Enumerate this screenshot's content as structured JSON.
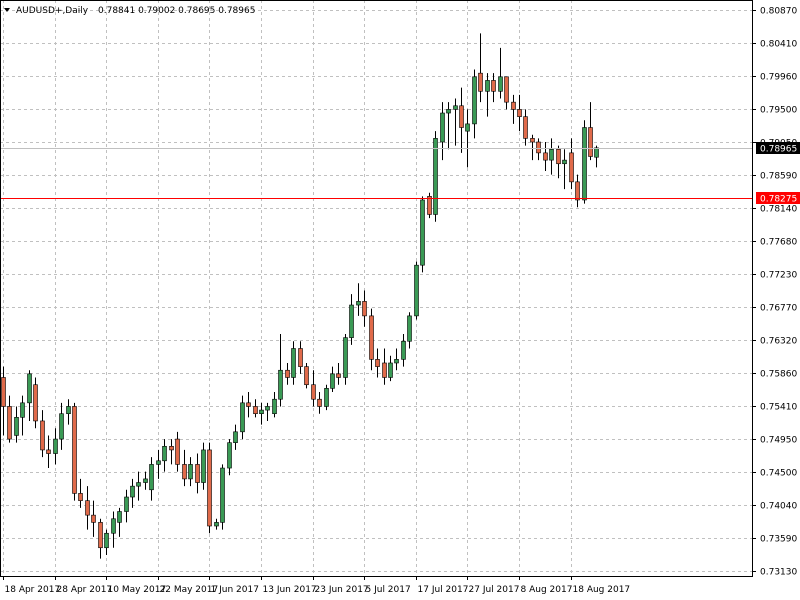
{
  "colors": {
    "background": "#ffffff",
    "grid": "#c0c0c0",
    "bull": "#3a9a55",
    "bear": "#e06a4a",
    "wick": "#000000",
    "current_line": "#c0c0c0",
    "current_tag_bg": "#000000",
    "current_tag_fg": "#ffffff",
    "ref_line": "#ff0000",
    "ref_tag_bg": "#ff0000",
    "ref_tag_fg": "#ffffff"
  },
  "chart_data": {
    "type": "candlestick",
    "symbol": "AUDUSD+,Daily",
    "info_values": "0.78841 0.79002 0.78695 0.78965",
    "ylim": [
      0.7306,
      0.8101
    ],
    "y_ticks": [
      "0.80870",
      "0.80410",
      "0.79960",
      "0.79500",
      "0.79050",
      "0.78590",
      "0.78140",
      "0.77680",
      "0.77230",
      "0.76770",
      "0.76320",
      "0.75860",
      "0.75410",
      "0.74950",
      "0.74500",
      "0.74040",
      "0.73590",
      "0.73130"
    ],
    "x_labels": [
      {
        "label": "18 Apr 2017",
        "index": 0
      },
      {
        "label": "28 Apr 2017",
        "index": 8
      },
      {
        "label": "10 May 2017",
        "index": 16
      },
      {
        "label": "22 May 2017",
        "index": 24
      },
      {
        "label": "1 Jun 2017",
        "index": 32
      },
      {
        "label": "13 Jun 2017",
        "index": 40
      },
      {
        "label": "23 Jun 2017",
        "index": 48
      },
      {
        "label": "5 Jul 2017",
        "index": 56
      },
      {
        "label": "17 Jul 2017",
        "index": 64
      },
      {
        "label": "27 Jul 2017",
        "index": 72
      },
      {
        "label": "8 Aug 2017",
        "index": 80
      },
      {
        "label": "18 Aug 2017",
        "index": 88
      }
    ],
    "current_price": "0.78965",
    "current_value": 0.78965,
    "ref_price": "0.78275",
    "ref_value": 0.78275,
    "candles": [
      {
        "o": 0.758,
        "h": 0.7595,
        "l": 0.75,
        "c": 0.754
      },
      {
        "o": 0.754,
        "h": 0.7555,
        "l": 0.749,
        "c": 0.7495
      },
      {
        "o": 0.75,
        "h": 0.754,
        "l": 0.749,
        "c": 0.7525
      },
      {
        "o": 0.7525,
        "h": 0.7555,
        "l": 0.75,
        "c": 0.7545
      },
      {
        "o": 0.7545,
        "h": 0.759,
        "l": 0.752,
        "c": 0.7585
      },
      {
        "o": 0.757,
        "h": 0.758,
        "l": 0.751,
        "c": 0.752
      },
      {
        "o": 0.752,
        "h": 0.7535,
        "l": 0.747,
        "c": 0.748
      },
      {
        "o": 0.748,
        "h": 0.75,
        "l": 0.7455,
        "c": 0.7475
      },
      {
        "o": 0.7475,
        "h": 0.751,
        "l": 0.746,
        "c": 0.7495
      },
      {
        "o": 0.7495,
        "h": 0.7545,
        "l": 0.748,
        "c": 0.753
      },
      {
        "o": 0.753,
        "h": 0.755,
        "l": 0.7515,
        "c": 0.754
      },
      {
        "o": 0.754,
        "h": 0.7545,
        "l": 0.741,
        "c": 0.742
      },
      {
        "o": 0.742,
        "h": 0.744,
        "l": 0.74,
        "c": 0.741
      },
      {
        "o": 0.741,
        "h": 0.743,
        "l": 0.737,
        "c": 0.739
      },
      {
        "o": 0.739,
        "h": 0.741,
        "l": 0.736,
        "c": 0.738
      },
      {
        "o": 0.738,
        "h": 0.7385,
        "l": 0.733,
        "c": 0.7345
      },
      {
        "o": 0.7345,
        "h": 0.737,
        "l": 0.7335,
        "c": 0.7365
      },
      {
        "o": 0.7365,
        "h": 0.7395,
        "l": 0.7345,
        "c": 0.7385
      },
      {
        "o": 0.738,
        "h": 0.74,
        "l": 0.736,
        "c": 0.7395
      },
      {
        "o": 0.7395,
        "h": 0.7425,
        "l": 0.738,
        "c": 0.7415
      },
      {
        "o": 0.7415,
        "h": 0.744,
        "l": 0.74,
        "c": 0.743
      },
      {
        "o": 0.743,
        "h": 0.745,
        "l": 0.741,
        "c": 0.7435
      },
      {
        "o": 0.7435,
        "h": 0.745,
        "l": 0.7425,
        "c": 0.744
      },
      {
        "o": 0.7425,
        "h": 0.747,
        "l": 0.741,
        "c": 0.746
      },
      {
        "o": 0.746,
        "h": 0.748,
        "l": 0.744,
        "c": 0.7465
      },
      {
        "o": 0.7465,
        "h": 0.7495,
        "l": 0.745,
        "c": 0.7485
      },
      {
        "o": 0.7485,
        "h": 0.7495,
        "l": 0.746,
        "c": 0.748
      },
      {
        "o": 0.7495,
        "h": 0.7505,
        "l": 0.745,
        "c": 0.746
      },
      {
        "o": 0.746,
        "h": 0.748,
        "l": 0.743,
        "c": 0.744
      },
      {
        "o": 0.744,
        "h": 0.747,
        "l": 0.743,
        "c": 0.746
      },
      {
        "o": 0.746,
        "h": 0.7475,
        "l": 0.742,
        "c": 0.7435
      },
      {
        "o": 0.7435,
        "h": 0.749,
        "l": 0.7425,
        "c": 0.748
      },
      {
        "o": 0.748,
        "h": 0.749,
        "l": 0.7365,
        "c": 0.7375
      },
      {
        "o": 0.7375,
        "h": 0.7385,
        "l": 0.737,
        "c": 0.738
      },
      {
        "o": 0.738,
        "h": 0.746,
        "l": 0.737,
        "c": 0.7455
      },
      {
        "o": 0.7455,
        "h": 0.7495,
        "l": 0.7445,
        "c": 0.749
      },
      {
        "o": 0.749,
        "h": 0.7515,
        "l": 0.748,
        "c": 0.7505
      },
      {
        "o": 0.7505,
        "h": 0.7555,
        "l": 0.7495,
        "c": 0.7545
      },
      {
        "o": 0.7545,
        "h": 0.756,
        "l": 0.7525,
        "c": 0.754
      },
      {
        "o": 0.754,
        "h": 0.755,
        "l": 0.7525,
        "c": 0.753
      },
      {
        "o": 0.753,
        "h": 0.7545,
        "l": 0.7515,
        "c": 0.7535
      },
      {
        "o": 0.7535,
        "h": 0.7545,
        "l": 0.752,
        "c": 0.754
      },
      {
        "o": 0.753,
        "h": 0.756,
        "l": 0.7525,
        "c": 0.755
      },
      {
        "o": 0.755,
        "h": 0.764,
        "l": 0.754,
        "c": 0.759
      },
      {
        "o": 0.759,
        "h": 0.76,
        "l": 0.757,
        "c": 0.758
      },
      {
        "o": 0.758,
        "h": 0.763,
        "l": 0.757,
        "c": 0.762
      },
      {
        "o": 0.762,
        "h": 0.763,
        "l": 0.7585,
        "c": 0.7595
      },
      {
        "o": 0.7595,
        "h": 0.76,
        "l": 0.7565,
        "c": 0.757
      },
      {
        "o": 0.757,
        "h": 0.759,
        "l": 0.754,
        "c": 0.755
      },
      {
        "o": 0.755,
        "h": 0.756,
        "l": 0.753,
        "c": 0.754
      },
      {
        "o": 0.754,
        "h": 0.757,
        "l": 0.7535,
        "c": 0.7565
      },
      {
        "o": 0.7565,
        "h": 0.7595,
        "l": 0.756,
        "c": 0.7585
      },
      {
        "o": 0.7585,
        "h": 0.76,
        "l": 0.757,
        "c": 0.758
      },
      {
        "o": 0.758,
        "h": 0.764,
        "l": 0.757,
        "c": 0.7635
      },
      {
        "o": 0.7635,
        "h": 0.7695,
        "l": 0.7625,
        "c": 0.768
      },
      {
        "o": 0.768,
        "h": 0.771,
        "l": 0.7665,
        "c": 0.7685
      },
      {
        "o": 0.7685,
        "h": 0.77,
        "l": 0.765,
        "c": 0.7665
      },
      {
        "o": 0.7665,
        "h": 0.7675,
        "l": 0.759,
        "c": 0.7605
      },
      {
        "o": 0.7605,
        "h": 0.762,
        "l": 0.758,
        "c": 0.7595
      },
      {
        "o": 0.76,
        "h": 0.762,
        "l": 0.757,
        "c": 0.758
      },
      {
        "o": 0.758,
        "h": 0.761,
        "l": 0.7575,
        "c": 0.76
      },
      {
        "o": 0.76,
        "h": 0.762,
        "l": 0.759,
        "c": 0.7605
      },
      {
        "o": 0.7605,
        "h": 0.764,
        "l": 0.7595,
        "c": 0.763
      },
      {
        "o": 0.763,
        "h": 0.767,
        "l": 0.762,
        "c": 0.7665
      },
      {
        "o": 0.7665,
        "h": 0.774,
        "l": 0.766,
        "c": 0.7735
      },
      {
        "o": 0.7735,
        "h": 0.783,
        "l": 0.7725,
        "c": 0.7825
      },
      {
        "o": 0.783,
        "h": 0.7835,
        "l": 0.78,
        "c": 0.7805
      },
      {
        "o": 0.7805,
        "h": 0.792,
        "l": 0.7795,
        "c": 0.791
      },
      {
        "o": 0.7905,
        "h": 0.796,
        "l": 0.788,
        "c": 0.7945
      },
      {
        "o": 0.7945,
        "h": 0.796,
        "l": 0.7895,
        "c": 0.795
      },
      {
        "o": 0.795,
        "h": 0.7965,
        "l": 0.79,
        "c": 0.7955
      },
      {
        "o": 0.7955,
        "h": 0.798,
        "l": 0.789,
        "c": 0.7925
      },
      {
        "o": 0.792,
        "h": 0.795,
        "l": 0.787,
        "c": 0.793
      },
      {
        "o": 0.793,
        "h": 0.8005,
        "l": 0.791,
        "c": 0.7995
      },
      {
        "o": 0.8,
        "h": 0.8055,
        "l": 0.796,
        "c": 0.7975
      },
      {
        "o": 0.7975,
        "h": 0.8,
        "l": 0.794,
        "c": 0.799
      },
      {
        "o": 0.799,
        "h": 0.8,
        "l": 0.796,
        "c": 0.7975
      },
      {
        "o": 0.7975,
        "h": 0.8035,
        "l": 0.7965,
        "c": 0.7995
      },
      {
        "o": 0.7995,
        "h": 0.7995,
        "l": 0.795,
        "c": 0.796
      },
      {
        "o": 0.796,
        "h": 0.797,
        "l": 0.793,
        "c": 0.795
      },
      {
        "o": 0.795,
        "h": 0.797,
        "l": 0.792,
        "c": 0.794
      },
      {
        "o": 0.794,
        "h": 0.795,
        "l": 0.79,
        "c": 0.791
      },
      {
        "o": 0.791,
        "h": 0.7915,
        "l": 0.788,
        "c": 0.7905
      },
      {
        "o": 0.7905,
        "h": 0.791,
        "l": 0.788,
        "c": 0.789
      },
      {
        "o": 0.789,
        "h": 0.7905,
        "l": 0.7865,
        "c": 0.788
      },
      {
        "o": 0.788,
        "h": 0.791,
        "l": 0.786,
        "c": 0.7895
      },
      {
        "o": 0.7895,
        "h": 0.79,
        "l": 0.7855,
        "c": 0.7875
      },
      {
        "o": 0.7875,
        "h": 0.7895,
        "l": 0.784,
        "c": 0.788
      },
      {
        "o": 0.789,
        "h": 0.791,
        "l": 0.784,
        "c": 0.785
      },
      {
        "o": 0.785,
        "h": 0.786,
        "l": 0.7815,
        "c": 0.7825
      },
      {
        "o": 0.7825,
        "h": 0.7935,
        "l": 0.782,
        "c": 0.7925
      },
      {
        "o": 0.7925,
        "h": 0.796,
        "l": 0.788,
        "c": 0.7885
      },
      {
        "o": 0.7884,
        "h": 0.79,
        "l": 0.787,
        "c": 0.7897
      }
    ]
  }
}
